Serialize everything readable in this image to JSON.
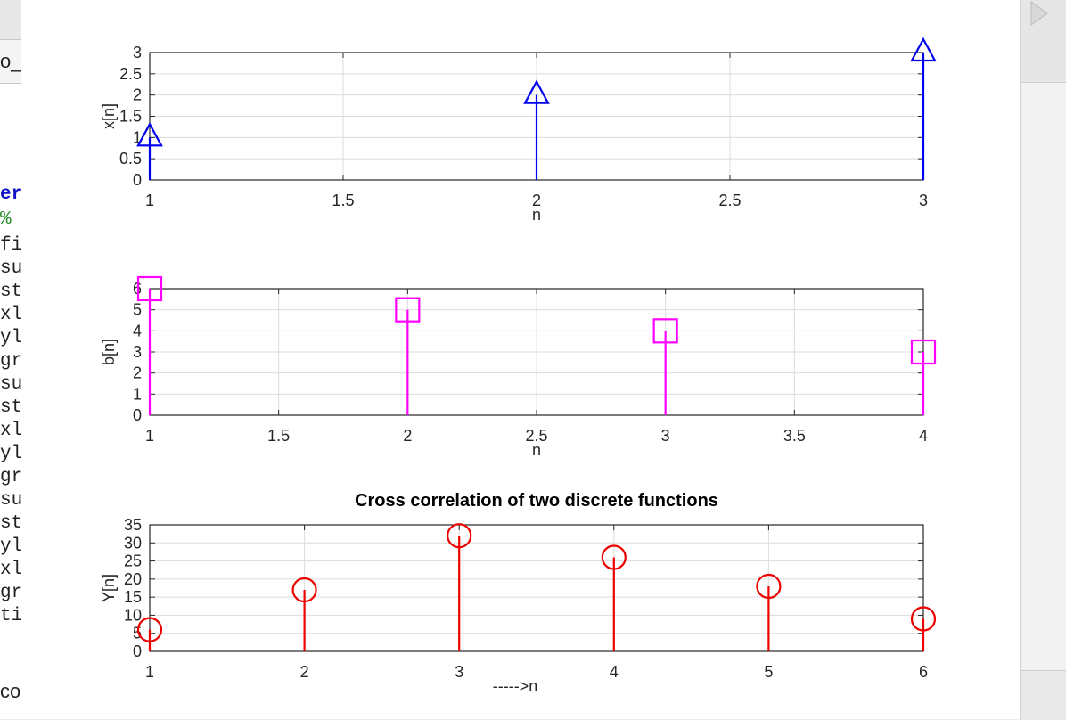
{
  "background": {
    "editor_lines": [
      {
        "text": "o_C",
        "kind": "plain"
      },
      {
        "text": "er",
        "kind": "kw"
      },
      {
        "text": "%",
        "kind": "cm"
      },
      {
        "text": "fi",
        "kind": "plain"
      },
      {
        "text": "su",
        "kind": "plain"
      },
      {
        "text": "st",
        "kind": "plain"
      },
      {
        "text": "xl",
        "kind": "plain"
      },
      {
        "text": "yl",
        "kind": "plain"
      },
      {
        "text": "gr",
        "kind": "plain"
      },
      {
        "text": "su",
        "kind": "plain"
      },
      {
        "text": "st",
        "kind": "plain"
      },
      {
        "text": "xl",
        "kind": "plain"
      },
      {
        "text": "yl",
        "kind": "plain"
      },
      {
        "text": "gr",
        "kind": "plain"
      },
      {
        "text": "su",
        "kind": "plain"
      },
      {
        "text": "st",
        "kind": "plain"
      },
      {
        "text": "yl",
        "kind": "plain"
      },
      {
        "text": "xl",
        "kind": "plain"
      },
      {
        "text": "gr",
        "kind": "plain"
      },
      {
        "text": "ti",
        "kind": "plain"
      },
      {
        "text": "co",
        "kind": "plain"
      }
    ]
  },
  "chart_data": [
    {
      "type": "stem",
      "title": "",
      "xlabel": "n",
      "ylabel": "x[n]",
      "xlim": [
        1,
        3
      ],
      "ylim": [
        0,
        3
      ],
      "xticks": [
        1,
        1.5,
        2,
        2.5,
        3
      ],
      "xtick_labels": [
        "1",
        "1.5",
        "2",
        "2.5",
        "3"
      ],
      "yticks": [
        0,
        0.5,
        1,
        1.5,
        2,
        2.5,
        3
      ],
      "ytick_labels": [
        "0",
        "0.5",
        "1",
        "1.5",
        "2",
        "2.5",
        "3"
      ],
      "grid": true,
      "marker": "triangle",
      "color": "#0000ee",
      "x": [
        1,
        2,
        3
      ],
      "y": [
        1,
        2,
        3
      ]
    },
    {
      "type": "stem",
      "title": "",
      "xlabel": "n",
      "ylabel": "b[n]",
      "xlim": [
        1,
        4
      ],
      "ylim": [
        0,
        6
      ],
      "xticks": [
        1,
        1.5,
        2,
        2.5,
        3,
        3.5,
        4
      ],
      "xtick_labels": [
        "1",
        "1.5",
        "2",
        "2.5",
        "3",
        "3.5",
        "4"
      ],
      "yticks": [
        0,
        1,
        2,
        3,
        4,
        5,
        6
      ],
      "ytick_labels": [
        "0",
        "1",
        "2",
        "3",
        "4",
        "5",
        "6"
      ],
      "grid": true,
      "marker": "square",
      "color": "#ff00ff",
      "x": [
        1,
        2,
        3,
        4
      ],
      "y": [
        6,
        5,
        4,
        3
      ]
    },
    {
      "type": "stem",
      "title": "Cross correlation of two discrete functions",
      "xlabel": "----->n",
      "ylabel": "Y[n]",
      "xlim": [
        1,
        6
      ],
      "ylim": [
        0,
        35
      ],
      "xticks": [
        1,
        2,
        3,
        4,
        5,
        6
      ],
      "xtick_labels": [
        "1",
        "2",
        "3",
        "4",
        "5",
        "6"
      ],
      "yticks": [
        0,
        5,
        10,
        15,
        20,
        25,
        30,
        35
      ],
      "ytick_labels": [
        "0",
        "5",
        "10",
        "15",
        "20",
        "25",
        "30",
        "35"
      ],
      "grid": true,
      "marker": "circle",
      "color": "#ee0000",
      "x": [
        1,
        2,
        3,
        4,
        5,
        6
      ],
      "y": [
        6,
        17,
        32,
        26,
        18,
        9
      ]
    }
  ]
}
